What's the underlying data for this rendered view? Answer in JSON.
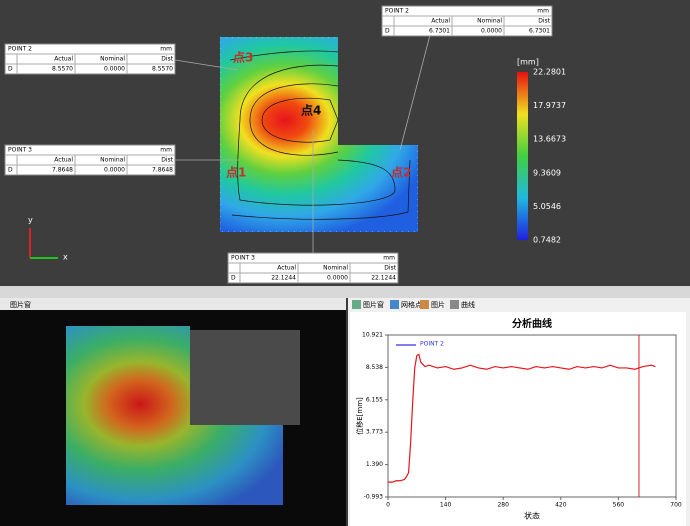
{
  "top_view": {
    "legend": {
      "unit": "[mm]",
      "labels": [
        "22.2801",
        "17.9737",
        "13.6673",
        "9.3609",
        "5.0546",
        "0.7482"
      ]
    },
    "point_boxes": [
      {
        "title": "POINT 2",
        "unit": "mm",
        "headers": [
          "Actual",
          "Nominal",
          "Dist"
        ],
        "row_label": "D",
        "values": [
          "8.5570",
          "0.0000",
          "8.5570"
        ]
      },
      {
        "title": "POINT 3",
        "unit": "mm",
        "headers": [
          "Actual",
          "Nominal",
          "Dist"
        ],
        "row_label": "D",
        "values": [
          "7.8648",
          "0.0000",
          "7.8648"
        ]
      },
      {
        "title": "POINT 2",
        "unit": "mm",
        "headers": [
          "Actual",
          "Nominal",
          "Dist"
        ],
        "row_label": "D",
        "values": [
          "6.7301",
          "0.0000",
          "6.7301"
        ]
      },
      {
        "title": "POINT 3",
        "unit": "mm",
        "headers": [
          "Actual",
          "Nominal",
          "Dist"
        ],
        "row_label": "D",
        "values": [
          "22.1244",
          "0.0000",
          "22.1244"
        ]
      }
    ],
    "markers": [
      "点1",
      "点2",
      "点3",
      "点4"
    ],
    "axis_labels": [
      "y",
      "x"
    ]
  },
  "bottom": {
    "left_tab": "图片窗",
    "right_tabs": [
      "图片窗",
      "网格点",
      "图片",
      "曲线"
    ]
  },
  "chart_data": {
    "type": "line",
    "title": "分析曲线",
    "x_label": "状态",
    "y_label": "位移E[mm]",
    "x": [
      0,
      10,
      20,
      30,
      40,
      45,
      50,
      55,
      60,
      65,
      70,
      75,
      80,
      90,
      100,
      120,
      140,
      160,
      180,
      200,
      220,
      240,
      260,
      280,
      300,
      320,
      340,
      360,
      380,
      400,
      420,
      440,
      460,
      480,
      500,
      520,
      540,
      560,
      580,
      600,
      620,
      640,
      650
    ],
    "series": [
      {
        "name": "POINT 2",
        "color": "#e8141c",
        "legend_color": "#3333dd",
        "values": [
          0.1,
          0.1,
          0.2,
          0.2,
          0.3,
          0.5,
          0.8,
          3,
          6,
          8.5,
          9.4,
          9.5,
          8.9,
          8.6,
          8.7,
          8.5,
          8.6,
          8.4,
          8.5,
          8.7,
          8.5,
          8.4,
          8.6,
          8.5,
          8.6,
          8.5,
          8.4,
          8.6,
          8.5,
          8.6,
          8.5,
          8.4,
          8.6,
          8.5,
          8.6,
          8.5,
          8.7,
          8.5,
          8.5,
          8.4,
          8.6,
          8.7,
          8.6
        ]
      }
    ],
    "xlim": [
      0,
      700
    ],
    "ylim": [
      -0.993,
      10.921
    ],
    "xticks": [
      0,
      140,
      280,
      420,
      560,
      700
    ],
    "yticks": [
      -0.993,
      {
        "value": 1.39,
        "label": "1.390"
      },
      3.773,
      6.155,
      8.538,
      10.921
    ],
    "cursor_x": 610
  }
}
